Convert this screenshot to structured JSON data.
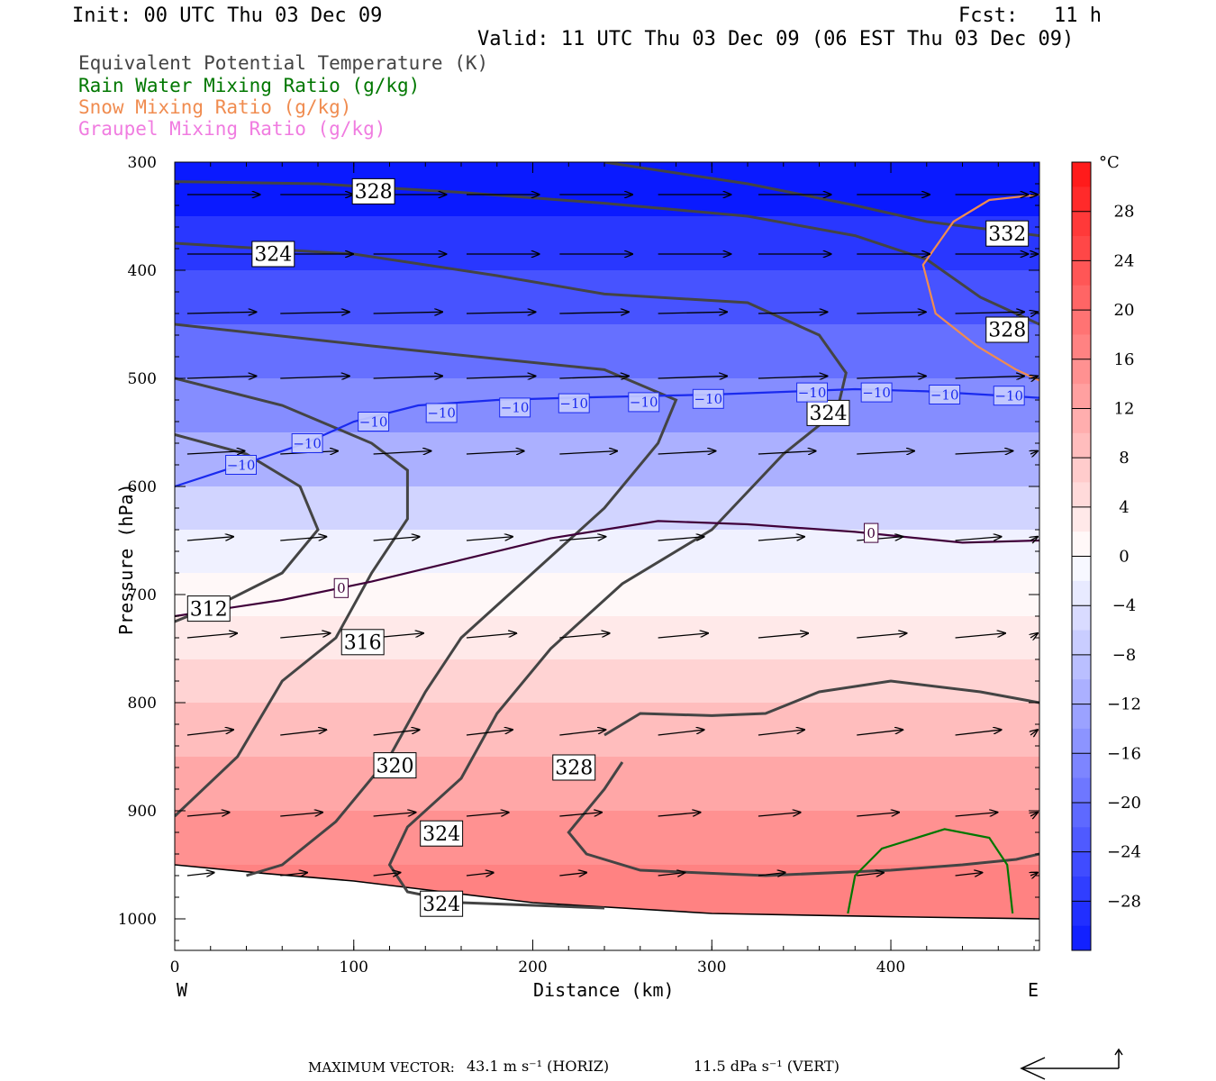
{
  "header": {
    "init": "Init: 00 UTC Thu 03 Dec 09",
    "fcst": "Fcst:   11 h",
    "valid": "Valid: 11 UTC Thu 03 Dec 09 (06 EST Thu 03 Dec 09)"
  },
  "legend": [
    {
      "text": "Equivalent Potential Temperature (K)",
      "color": "#444444"
    },
    {
      "text": "Rain Water Mixing Ratio (g/kg)",
      "color": "#007700"
    },
    {
      "text": "Snow Mixing Ratio (g/kg)",
      "color": "#f08c50"
    },
    {
      "text": "Graupel Mixing Ratio (g/kg)",
      "color": "#f07ce0"
    }
  ],
  "footer": {
    "max_vector_label": "MAXIMUM VECTOR:",
    "horiz": "43.1 m s⁻¹ (HORIZ)",
    "vert": "11.5 dPa s⁻¹ (VERT)"
  },
  "chart_data": {
    "type": "heatmap",
    "title": "",
    "xlabel": "Distance (km)",
    "ylabel": "Pressure (hPa)",
    "xlim": [
      0,
      483
    ],
    "ylim": [
      1030,
      300
    ],
    "x_ticks": [
      0,
      100,
      200,
      300,
      400
    ],
    "y_ticks": [
      300,
      400,
      500,
      600,
      700,
      800,
      900,
      1000
    ],
    "x_end_labels": {
      "left": "W",
      "right": "E"
    },
    "colorbar": {
      "unit": "°C",
      "ticks": [
        28,
        24,
        20,
        16,
        12,
        8,
        4,
        0,
        -4,
        -8,
        -12,
        -16,
        -20,
        -24,
        -28
      ],
      "range": [
        -32,
        32
      ],
      "cold_color": "#0a1aff",
      "warm_color": "#ff1a1a"
    },
    "temperature_rows": [
      {
        "p": 300,
        "t": -32
      },
      {
        "p": 350,
        "t": -28
      },
      {
        "p": 400,
        "t": -24
      },
      {
        "p": 450,
        "t": -20
      },
      {
        "p": 500,
        "t": -16
      },
      {
        "p": 550,
        "t": -11
      },
      {
        "p": 600,
        "t": -6
      },
      {
        "p": 640,
        "t": -2
      },
      {
        "p": 680,
        "t": 1
      },
      {
        "p": 720,
        "t": 3
      },
      {
        "p": 760,
        "t": 6
      },
      {
        "p": 800,
        "t": 9
      },
      {
        "p": 850,
        "t": 12
      },
      {
        "p": 900,
        "t": 15
      },
      {
        "p": 950,
        "t": 17
      },
      {
        "p": 1000,
        "t": 18
      }
    ],
    "isotherms": [
      {
        "value": -10,
        "label": "−10",
        "color": "#1a2aee",
        "points": [
          [
            0,
            600
          ],
          [
            37,
            580
          ],
          [
            73,
            560
          ],
          [
            100,
            540
          ],
          [
            136,
            525
          ],
          [
            180,
            520
          ],
          [
            220,
            518
          ],
          [
            300,
            515
          ],
          [
            380,
            510
          ],
          [
            420,
            512
          ],
          [
            483,
            518
          ]
        ],
        "labels_at": [
          [
            37,
            580
          ],
          [
            74,
            560
          ],
          [
            111,
            540
          ],
          [
            149,
            532
          ],
          [
            190,
            527
          ],
          [
            223,
            523
          ],
          [
            262,
            522
          ],
          [
            298,
            519
          ],
          [
            356,
            513
          ],
          [
            392,
            513
          ],
          [
            430,
            515
          ],
          [
            466,
            516
          ]
        ]
      },
      {
        "value": 0,
        "label": "0",
        "color": "#40003a",
        "points": [
          [
            0,
            720
          ],
          [
            60,
            705
          ],
          [
            110,
            688
          ],
          [
            160,
            668
          ],
          [
            210,
            648
          ],
          [
            270,
            632
          ],
          [
            320,
            635
          ],
          [
            380,
            642
          ],
          [
            440,
            652
          ],
          [
            483,
            650
          ]
        ],
        "labels_at": [
          [
            93,
            694
          ],
          [
            389,
            643
          ]
        ]
      }
    ],
    "theta_e_contours": [
      {
        "value": 312,
        "label": "312",
        "labels_at": [
          [
            19,
            713
          ]
        ],
        "points": [
          [
            0,
            552
          ],
          [
            40,
            570
          ],
          [
            70,
            600
          ],
          [
            80,
            640
          ],
          [
            60,
            680
          ],
          [
            30,
            705
          ],
          [
            0,
            725
          ]
        ]
      },
      {
        "value": 316,
        "label": "316",
        "labels_at": [
          [
            105,
            744
          ]
        ],
        "points": [
          [
            0,
            500
          ],
          [
            60,
            525
          ],
          [
            110,
            560
          ],
          [
            130,
            585
          ],
          [
            130,
            630
          ],
          [
            110,
            680
          ],
          [
            90,
            740
          ],
          [
            60,
            780
          ],
          [
            35,
            850
          ],
          [
            0,
            905
          ]
        ]
      },
      {
        "value": 320,
        "label": "320",
        "labels_at": [
          [
            123,
            858
          ]
        ],
        "points": [
          [
            0,
            450
          ],
          [
            110,
            470
          ],
          [
            180,
            482
          ],
          [
            240,
            492
          ],
          [
            280,
            520
          ],
          [
            270,
            560
          ],
          [
            240,
            620
          ],
          [
            200,
            680
          ],
          [
            160,
            740
          ],
          [
            140,
            790
          ],
          [
            120,
            850
          ],
          [
            90,
            910
          ],
          [
            60,
            950
          ],
          [
            40,
            960
          ]
        ]
      },
      {
        "value": 324,
        "label": "324",
        "labels_at": [
          [
            55,
            385
          ],
          [
            149,
            921
          ],
          [
            149,
            986
          ],
          [
            365,
            532
          ]
        ],
        "points": [
          [
            0,
            375
          ],
          [
            100,
            385
          ],
          [
            180,
            405
          ],
          [
            240,
            422
          ],
          [
            320,
            430
          ],
          [
            360,
            460
          ],
          [
            375,
            495
          ],
          [
            370,
            530
          ],
          [
            340,
            570
          ],
          [
            300,
            640
          ],
          [
            250,
            690
          ],
          [
            210,
            750
          ],
          [
            180,
            810
          ],
          [
            160,
            870
          ],
          [
            130,
            915
          ],
          [
            120,
            950
          ],
          [
            130,
            975
          ],
          [
            160,
            985
          ],
          [
            240,
            990
          ]
        ]
      },
      {
        "value": 328,
        "label": "328",
        "labels_at": [
          [
            111,
            327
          ],
          [
            223,
            860
          ],
          [
            465,
            455
          ]
        ],
        "points": [
          [
            0,
            318
          ],
          [
            80,
            320
          ],
          [
            160,
            328
          ],
          [
            240,
            338
          ],
          [
            320,
            350
          ],
          [
            380,
            368
          ],
          [
            420,
            390
          ],
          [
            450,
            425
          ],
          [
            483,
            450
          ]
        ]
      },
      {
        "value": 328,
        "label": "",
        "labels_at": [],
        "points": [
          [
            250,
            855
          ],
          [
            240,
            880
          ],
          [
            220,
            920
          ],
          [
            230,
            940
          ],
          [
            260,
            955
          ],
          [
            330,
            960
          ],
          [
            400,
            955
          ],
          [
            440,
            950
          ],
          [
            470,
            945
          ],
          [
            483,
            940
          ]
        ]
      },
      {
        "value": 328,
        "label": "",
        "labels_at": [],
        "points": [
          [
            240,
            830
          ],
          [
            260,
            810
          ],
          [
            300,
            812
          ],
          [
            330,
            810
          ],
          [
            360,
            790
          ],
          [
            400,
            780
          ],
          [
            450,
            790
          ],
          [
            483,
            800
          ]
        ]
      },
      {
        "value": 332,
        "label": "332",
        "labels_at": [
          [
            465,
            366
          ]
        ],
        "points": [
          [
            240,
            300
          ],
          [
            320,
            320
          ],
          [
            380,
            340
          ],
          [
            420,
            355
          ],
          [
            483,
            368
          ]
        ]
      }
    ],
    "rain_contours": [
      {
        "points": [
          [
            376,
            995
          ],
          [
            380,
            960
          ],
          [
            395,
            935
          ],
          [
            430,
            917
          ],
          [
            455,
            925
          ],
          [
            465,
            950
          ],
          [
            468,
            995
          ]
        ]
      }
    ],
    "snow_contours": [
      {
        "points": [
          [
            483,
            330
          ],
          [
            455,
            335
          ],
          [
            435,
            355
          ],
          [
            418,
            395
          ],
          [
            425,
            440
          ],
          [
            448,
            470
          ],
          [
            470,
            492
          ],
          [
            483,
            502
          ]
        ]
      }
    ],
    "surface": {
      "points": [
        [
          0,
          950
        ],
        [
          50,
          958
        ],
        [
          100,
          965
        ],
        [
          150,
          975
        ],
        [
          200,
          985
        ],
        [
          300,
          995
        ],
        [
          400,
          998
        ],
        [
          483,
          1000
        ]
      ]
    },
    "wind_vectors": {
      "columns_km": [
        7,
        59,
        111,
        163,
        215,
        270,
        326,
        381,
        436,
        478
      ],
      "rows": [
        {
          "p": 330,
          "u": 0.95,
          "v": 0.0
        },
        {
          "p": 385,
          "u": 0.95,
          "v": 0.0
        },
        {
          "p": 440,
          "u": 0.9,
          "v": 0.02
        },
        {
          "p": 500,
          "u": 0.9,
          "v": 0.03
        },
        {
          "p": 570,
          "u": 0.75,
          "v": 0.04
        },
        {
          "p": 650,
          "u": 0.6,
          "v": 0.05
        },
        {
          "p": 740,
          "u": 0.65,
          "v": 0.06
        },
        {
          "p": 830,
          "u": 0.6,
          "v": 0.07
        },
        {
          "p": 905,
          "u": 0.55,
          "v": 0.05
        },
        {
          "p": 960,
          "u": 0.35,
          "v": 0.04
        }
      ]
    }
  }
}
